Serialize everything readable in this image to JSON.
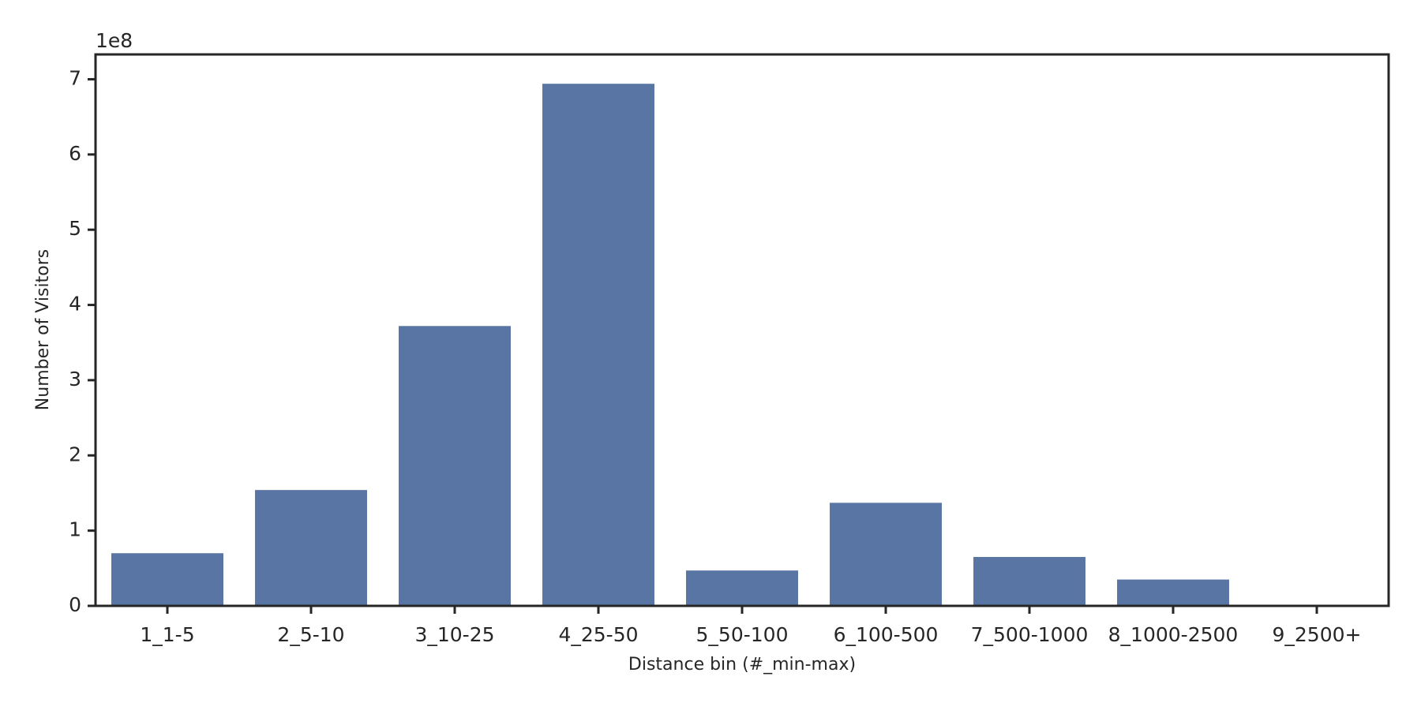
{
  "chart_data": {
    "type": "bar",
    "x_label": "Distance bin (#_min-max)",
    "y_label": "Number of Visitors",
    "y_offset_label": "1e8",
    "categories": [
      "1_1-5",
      "2_5-10",
      "3_10-25",
      "4_25-50",
      "5_50-100",
      "6_100-500",
      "7_500-1000",
      "8_1000-2500",
      "9_2500+"
    ],
    "values": [
      0.7,
      1.54,
      3.72,
      6.94,
      0.47,
      1.37,
      0.65,
      0.35,
      0
    ],
    "color": "#5975a4",
    "ylim": [
      0,
      7.33
    ],
    "yticks": [
      0,
      1,
      2,
      3,
      4,
      5,
      6,
      7
    ]
  }
}
